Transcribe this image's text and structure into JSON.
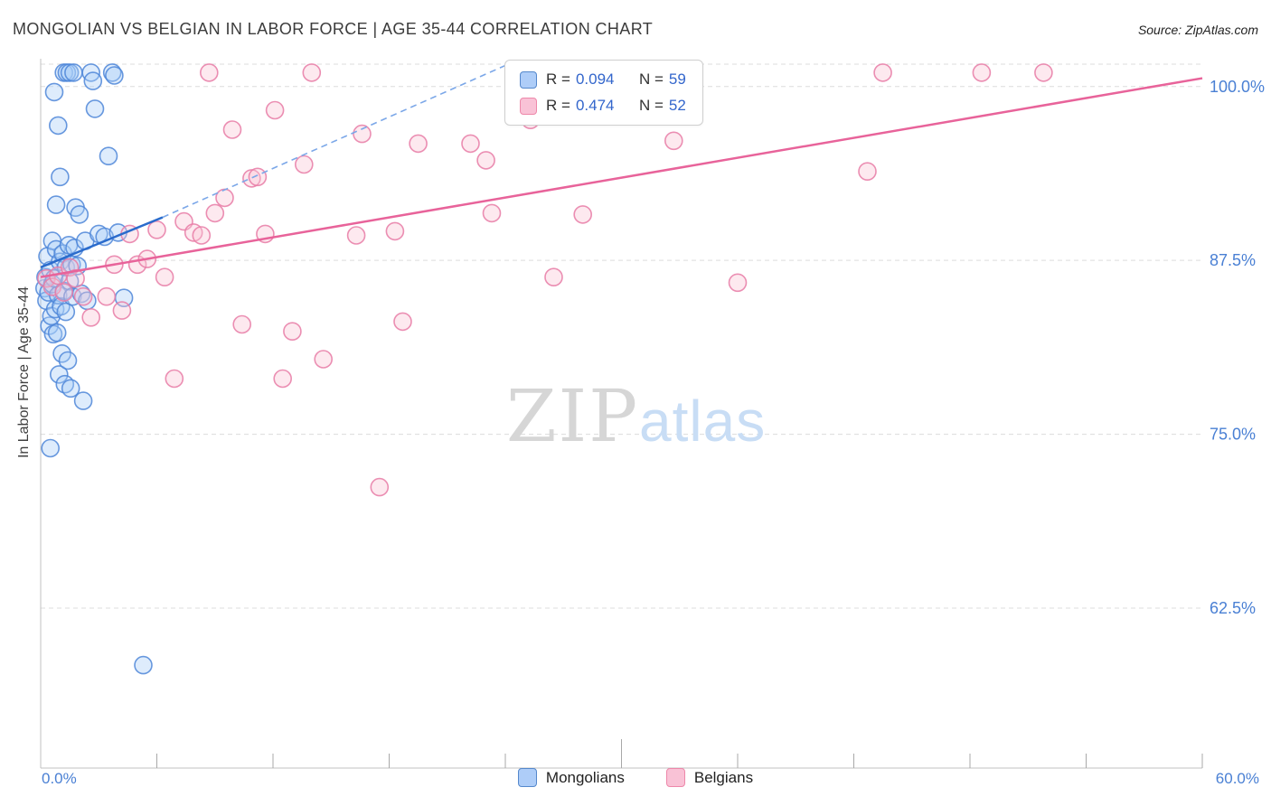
{
  "header": {
    "title": "MONGOLIAN VS BELGIAN IN LABOR FORCE | AGE 35-44 CORRELATION CHART",
    "source": "Source: ZipAtlas.com"
  },
  "axes": {
    "y_label": "In Labor Force | Age 35-44",
    "x_min_label": "0.0%",
    "x_max_label": "60.0%"
  },
  "legend": {
    "rows": [
      {
        "series": "Mongolians",
        "r_label": "R =",
        "r_value": "0.094",
        "n_label": "N =",
        "n_value": "59"
      },
      {
        "series": "Belgians",
        "r_label": "R =",
        "r_value": "0.474",
        "n_label": "N =",
        "n_value": "52"
      }
    ]
  },
  "bottom_legend": {
    "mongolians": "Mongolians",
    "belgians": "Belgians"
  },
  "watermark": {
    "zip": "ZIP",
    "atlas": "atlas"
  },
  "colors": {
    "gridline": "#dcdcdc",
    "axis_line": "#c0c0c0",
    "axis_text": "#4a80d4",
    "tick": "#a8a8a8",
    "legend_value": "#3366cc",
    "title_text": "#3c3c3c"
  },
  "chart_data": {
    "type": "scatter",
    "title": "MONGOLIAN VS BELGIAN IN LABOR FORCE | AGE 35-44 CORRELATION CHART",
    "xlabel": "",
    "ylabel": "In Labor Force | Age 35-44",
    "x_unit": "%",
    "y_unit": "%",
    "xlim": [
      0,
      60
    ],
    "ylim": [
      51,
      102
    ],
    "grid": true,
    "legend_position": "top-center",
    "y_ticks": [
      {
        "value": 100.0,
        "label": "100.0%"
      },
      {
        "value": 87.5,
        "label": "87.5%"
      },
      {
        "value": 75.0,
        "label": "75.0%"
      },
      {
        "value": 62.5,
        "label": "62.5%"
      }
    ],
    "series": [
      {
        "name": "Mongolians",
        "R": 0.094,
        "N": 59,
        "fill": "#a8ccf8",
        "stroke": "#4e86d8",
        "points": [
          [
            0.2,
            85.5
          ],
          [
            0.25,
            86.3
          ],
          [
            0.3,
            84.6
          ],
          [
            0.35,
            87.8
          ],
          [
            0.4,
            85.2
          ],
          [
            0.45,
            82.8
          ],
          [
            0.5,
            74.0
          ],
          [
            0.5,
            86.8
          ],
          [
            0.55,
            83.5
          ],
          [
            0.6,
            88.9
          ],
          [
            0.6,
            85.8
          ],
          [
            0.65,
            82.2
          ],
          [
            0.7,
            99.6
          ],
          [
            0.7,
            86.2
          ],
          [
            0.75,
            84.0
          ],
          [
            0.8,
            91.5
          ],
          [
            0.8,
            88.3
          ],
          [
            0.85,
            82.3
          ],
          [
            0.9,
            97.2
          ],
          [
            0.9,
            85.0
          ],
          [
            0.95,
            79.3
          ],
          [
            1.0,
            93.5
          ],
          [
            1.0,
            87.4
          ],
          [
            1.05,
            84.2
          ],
          [
            1.1,
            80.8
          ],
          [
            1.15,
            88.0
          ],
          [
            1.2,
            101.0
          ],
          [
            1.2,
            85.3
          ],
          [
            1.25,
            78.6
          ],
          [
            1.3,
            87.0
          ],
          [
            1.3,
            83.8
          ],
          [
            1.35,
            101.0
          ],
          [
            1.4,
            80.3
          ],
          [
            1.45,
            88.6
          ],
          [
            1.5,
            101.0
          ],
          [
            1.5,
            86.0
          ],
          [
            1.55,
            78.3
          ],
          [
            1.6,
            87.2
          ],
          [
            1.65,
            84.9
          ],
          [
            1.7,
            101.0
          ],
          [
            1.75,
            88.4
          ],
          [
            1.8,
            91.3
          ],
          [
            1.9,
            87.1
          ],
          [
            2.0,
            90.8
          ],
          [
            2.1,
            85.1
          ],
          [
            2.2,
            77.4
          ],
          [
            2.3,
            88.9
          ],
          [
            2.4,
            84.6
          ],
          [
            2.6,
            101.0
          ],
          [
            2.7,
            100.4
          ],
          [
            2.8,
            98.4
          ],
          [
            3.0,
            89.4
          ],
          [
            3.3,
            89.2
          ],
          [
            3.5,
            95.0
          ],
          [
            3.7,
            101.0
          ],
          [
            3.8,
            100.8
          ],
          [
            4.0,
            89.5
          ],
          [
            4.3,
            84.8
          ],
          [
            5.3,
            58.4
          ]
        ]
      },
      {
        "name": "Belgians",
        "R": 0.474,
        "N": 52,
        "fill": "#f9c4d6",
        "stroke": "#e87ba6",
        "points": [
          [
            0.3,
            86.2
          ],
          [
            0.6,
            85.6
          ],
          [
            0.9,
            86.4
          ],
          [
            1.2,
            85.2
          ],
          [
            1.5,
            87.0
          ],
          [
            1.8,
            86.2
          ],
          [
            2.2,
            84.9
          ],
          [
            2.6,
            83.4
          ],
          [
            3.4,
            84.9
          ],
          [
            3.8,
            87.2
          ],
          [
            4.2,
            83.9
          ],
          [
            4.6,
            89.4
          ],
          [
            5.0,
            87.2
          ],
          [
            5.5,
            87.6
          ],
          [
            6.0,
            89.7
          ],
          [
            6.4,
            86.3
          ],
          [
            6.9,
            79.0
          ],
          [
            7.4,
            90.3
          ],
          [
            7.9,
            89.5
          ],
          [
            8.3,
            89.3
          ],
          [
            8.7,
            101.0
          ],
          [
            9.0,
            90.9
          ],
          [
            9.5,
            92.0
          ],
          [
            9.9,
            96.9
          ],
          [
            10.4,
            82.9
          ],
          [
            10.9,
            93.4
          ],
          [
            11.2,
            93.5
          ],
          [
            11.6,
            89.4
          ],
          [
            12.1,
            98.3
          ],
          [
            12.5,
            79.0
          ],
          [
            13.0,
            82.4
          ],
          [
            13.6,
            94.4
          ],
          [
            14.0,
            101.0
          ],
          [
            14.6,
            80.4
          ],
          [
            16.3,
            89.3
          ],
          [
            16.6,
            96.6
          ],
          [
            17.5,
            71.2
          ],
          [
            18.3,
            89.6
          ],
          [
            18.7,
            83.1
          ],
          [
            19.5,
            95.9
          ],
          [
            22.2,
            95.9
          ],
          [
            23.0,
            94.7
          ],
          [
            23.3,
            90.9
          ],
          [
            25.3,
            97.6
          ],
          [
            26.5,
            86.3
          ],
          [
            28.0,
            90.8
          ],
          [
            32.7,
            96.1
          ],
          [
            36.0,
            85.9
          ],
          [
            42.7,
            93.9
          ],
          [
            43.5,
            101.0
          ],
          [
            48.6,
            101.0
          ],
          [
            51.8,
            101.0
          ]
        ]
      }
    ],
    "trend_lines": [
      {
        "series": "Mongolians",
        "color": "#2a6bcc",
        "dash_color": "#7ba7e8",
        "solid": [
          [
            0,
            87.0
          ],
          [
            6.3,
            90.6
          ]
        ],
        "dashed": [
          [
            6.3,
            90.6
          ],
          [
            24.3,
            101.7
          ]
        ]
      },
      {
        "series": "Belgians",
        "color": "#e8639a",
        "solid": [
          [
            0,
            86.3
          ],
          [
            60,
            100.6
          ]
        ]
      }
    ]
  }
}
